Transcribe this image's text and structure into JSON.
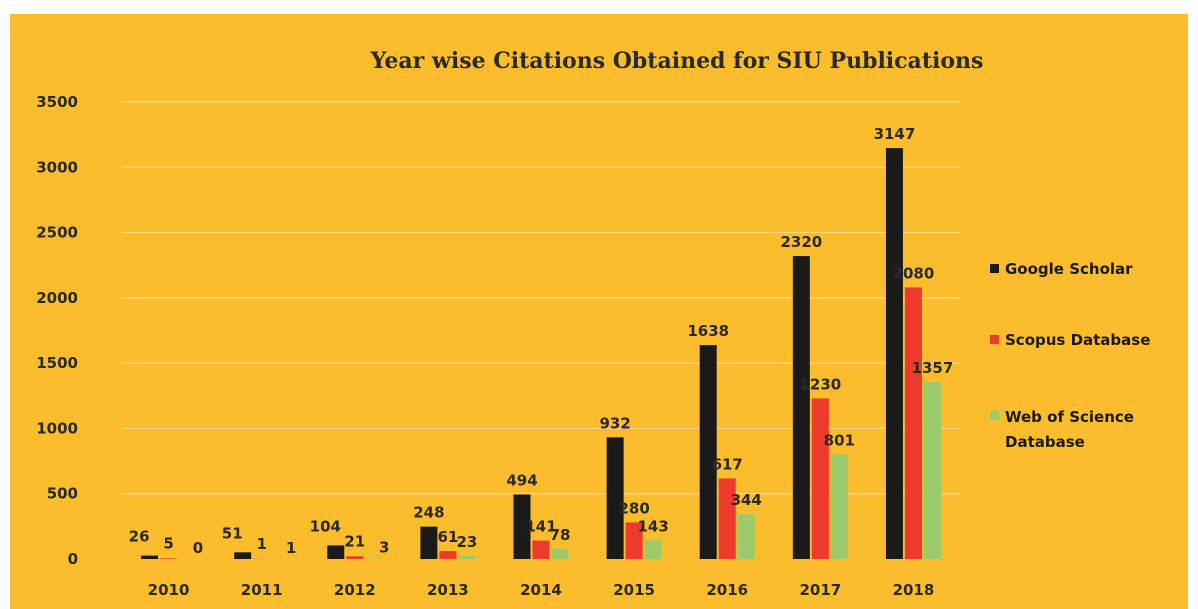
{
  "chart_data": {
    "type": "bar",
    "title": "Year wise Citations Obtained for SIU Publications",
    "categories": [
      "2010",
      "2011",
      "2012",
      "2013",
      "2014",
      "2015",
      "2016",
      "2017",
      "2018"
    ],
    "series": [
      {
        "name": "Google Scholar",
        "color": "#1a1a1a",
        "values": [
          26,
          51,
          104,
          248,
          494,
          932,
          1638,
          2320,
          3147
        ]
      },
      {
        "name": "Scopus Database",
        "color": "#ee3a2c",
        "values": [
          5,
          1,
          21,
          61,
          141,
          280,
          617,
          1230,
          2080
        ]
      },
      {
        "name": "Web of Science Database",
        "color": "#9ccb6c",
        "values": [
          0,
          1,
          3,
          23,
          78,
          143,
          344,
          801,
          1357
        ]
      }
    ],
    "ylim": [
      0,
      3500
    ],
    "yticks": [
      0,
      500,
      1000,
      1500,
      2000,
      2500,
      3000,
      3500
    ],
    "grid": true,
    "legend_position": "right",
    "background": "#fbbd2b"
  },
  "legend": {
    "items": [
      "Google Scholar",
      "Scopus Database",
      "Web of Science",
      "Database"
    ]
  }
}
